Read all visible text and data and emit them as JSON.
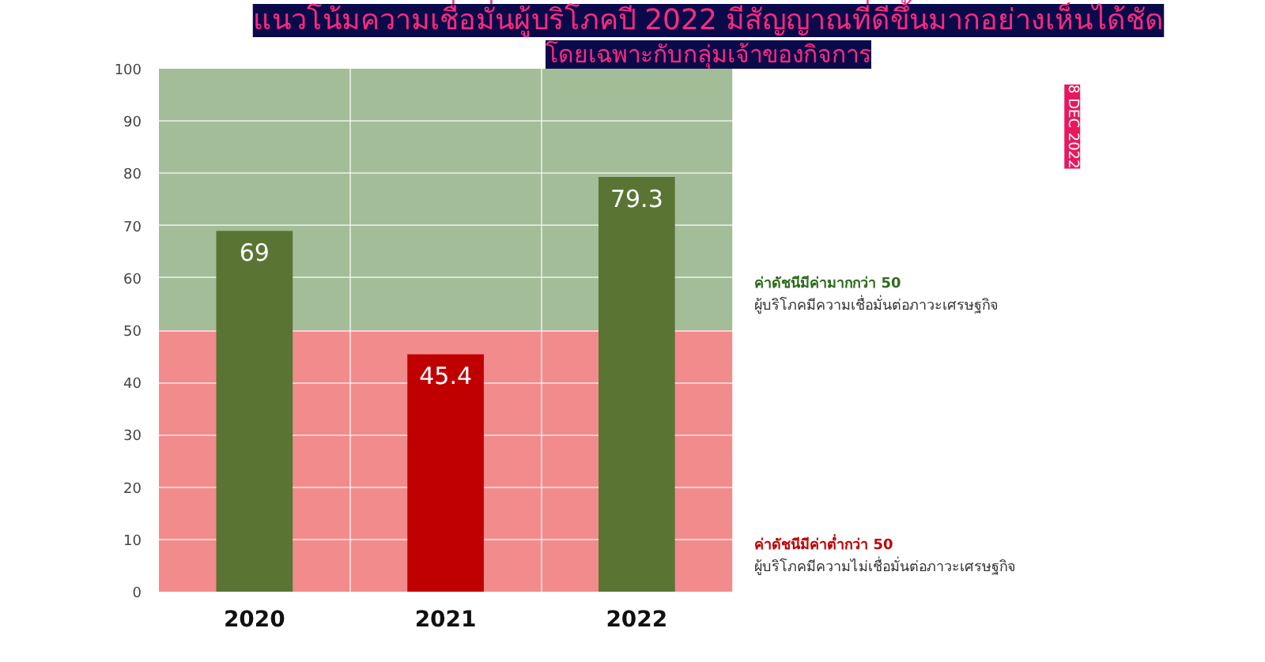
{
  "chart_data": {
    "type": "bar",
    "title": "แนวโน้มความเชื่อมั่นผู้บริโภคปี 2022 มีสัญญาณที่ดีขึ้นมากอย่างเห็นได้ชัด",
    "subtitle": "โดยเฉพาะกับกลุ่มเจ้าของกิจการ",
    "categories": [
      "2020",
      "2021",
      "2022"
    ],
    "values": [
      69,
      45.4,
      79.3
    ],
    "colors": [
      "#5a7533",
      "#c00000",
      "#5a7533"
    ],
    "data_labels": true,
    "ylim": [
      0,
      100
    ],
    "yticks": [
      0,
      10,
      20,
      30,
      40,
      50,
      60,
      70,
      80,
      90,
      100
    ],
    "grid": true,
    "bands": [
      {
        "axis": "y",
        "from": 50,
        "to": 100,
        "label": "ค่าดัชนีมีค่ามากกว่า 50\nผู้บริโภคมีความเชื่อมั่นต่อภาวะเศรษฐกิจ",
        "color": "#a3bd98"
      },
      {
        "axis": "y",
        "from": 0,
        "to": 50,
        "label": "ค่าดัชนีมีค่าต่ำกว่า 50\nผู้บริโภคมีความไม่เชื่อมั่นต่อภาวะเศรษฐกิจ",
        "color": "#f28b8c"
      }
    ],
    "annotations": [
      "8 DEC 2022"
    ]
  }
}
